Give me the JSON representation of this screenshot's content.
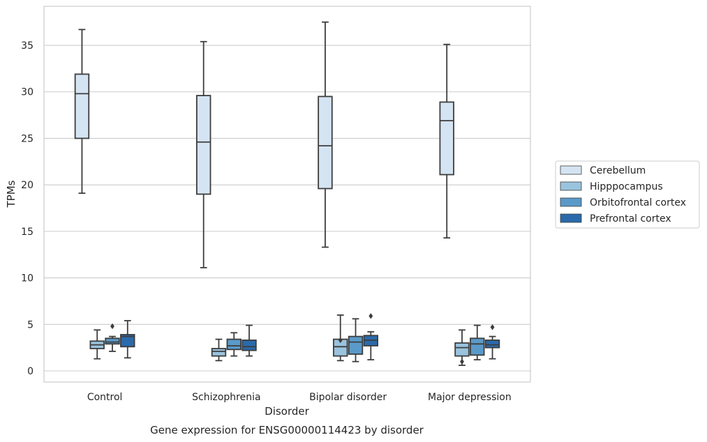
{
  "chart_data": {
    "type": "box",
    "caption": "Gene expression for ENSG00000114423 by disorder",
    "xlabel": "Disorder",
    "ylabel": "TPMs",
    "ylim": [
      -1.2,
      39.2
    ],
    "yticks": [
      0,
      5,
      10,
      15,
      20,
      25,
      30,
      35
    ],
    "grid": true,
    "legend_position": "right",
    "categories": [
      "Control",
      "Schizophrenia",
      "Bipolar disorder",
      "Major depression"
    ],
    "series": [
      {
        "name": "Cerebellum",
        "color": "#d5e4f2",
        "boxes": [
          {
            "whislo": 19.1,
            "q1": 25.0,
            "med": 29.8,
            "q3": 31.9,
            "whishi": 36.7,
            "fliers": []
          },
          {
            "whislo": 11.1,
            "q1": 19.0,
            "med": 24.6,
            "q3": 29.6,
            "whishi": 35.4,
            "fliers": []
          },
          {
            "whislo": 13.3,
            "q1": 19.6,
            "med": 24.2,
            "q3": 29.5,
            "whishi": 37.5,
            "fliers": []
          },
          {
            "whislo": 14.3,
            "q1": 21.1,
            "med": 26.9,
            "q3": 28.9,
            "whishi": 35.1,
            "fliers": []
          }
        ]
      },
      {
        "name": "Hipppocampus",
        "color": "#9ac3dd",
        "boxes": [
          {
            "whislo": 1.3,
            "q1": 2.4,
            "med": 2.8,
            "q3": 3.2,
            "whishi": 4.4,
            "fliers": []
          },
          {
            "whislo": 1.1,
            "q1": 1.6,
            "med": 2.1,
            "q3": 2.4,
            "whishi": 3.4,
            "fliers": []
          },
          {
            "whislo": 1.1,
            "q1": 1.6,
            "med": 2.6,
            "q3": 3.4,
            "whishi": 6.0,
            "fliers": [
              3.3
            ]
          },
          {
            "whislo": 0.6,
            "q1": 1.6,
            "med": 2.5,
            "q3": 3.0,
            "whishi": 4.4,
            "fliers": [
              1.0
            ]
          }
        ]
      },
      {
        "name": "Orbitofrontal cortex",
        "color": "#5a9ac9",
        "boxes": [
          {
            "whislo": 2.1,
            "q1": 2.9,
            "med": 3.1,
            "q3": 3.5,
            "whishi": 3.7,
            "fliers": [
              4.8
            ]
          },
          {
            "whislo": 1.6,
            "q1": 2.3,
            "med": 2.7,
            "q3": 3.4,
            "whishi": 4.1,
            "fliers": []
          },
          {
            "whislo": 1.0,
            "q1": 1.8,
            "med": 3.1,
            "q3": 3.7,
            "whishi": 5.6,
            "fliers": []
          },
          {
            "whislo": 1.2,
            "q1": 1.7,
            "med": 2.9,
            "q3": 3.5,
            "whishi": 4.9,
            "fliers": []
          }
        ]
      },
      {
        "name": "Prefrontal cortex",
        "color": "#2a6aab",
        "boxes": [
          {
            "whislo": 1.4,
            "q1": 2.6,
            "med": 3.7,
            "q3": 3.9,
            "whishi": 5.4,
            "fliers": []
          },
          {
            "whislo": 1.6,
            "q1": 2.2,
            "med": 2.6,
            "q3": 3.3,
            "whishi": 4.9,
            "fliers": []
          },
          {
            "whislo": 1.2,
            "q1": 2.7,
            "med": 3.3,
            "q3": 3.8,
            "whishi": 4.2,
            "fliers": [
              5.9
            ]
          },
          {
            "whislo": 1.3,
            "q1": 2.5,
            "med": 2.8,
            "q3": 3.3,
            "whishi": 3.7,
            "fliers": [
              4.7
            ]
          }
        ]
      }
    ]
  }
}
